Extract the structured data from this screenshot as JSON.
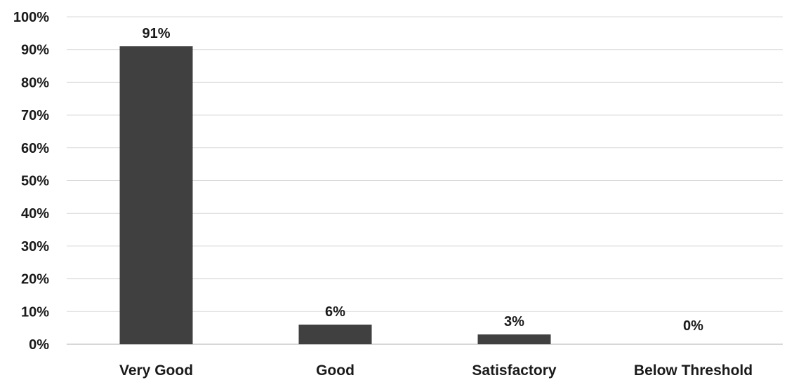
{
  "chart_data": {
    "type": "bar",
    "categories": [
      "Very Good",
      "Good",
      "Satisfactory",
      "Below Threshold"
    ],
    "values": [
      91,
      6,
      3,
      0
    ],
    "data_labels": [
      "91%",
      "6%",
      "3%",
      "0%"
    ],
    "ylim": [
      0,
      100
    ],
    "yticks": [
      0,
      10,
      20,
      30,
      40,
      50,
      60,
      70,
      80,
      90,
      100
    ],
    "ytick_labels": [
      "0%",
      "10%",
      "20%",
      "30%",
      "40%",
      "50%",
      "60%",
      "70%",
      "80%",
      "90%",
      "100%"
    ],
    "title": "",
    "xlabel": "",
    "ylabel": "",
    "grid": true,
    "bar_color": "#404040"
  }
}
